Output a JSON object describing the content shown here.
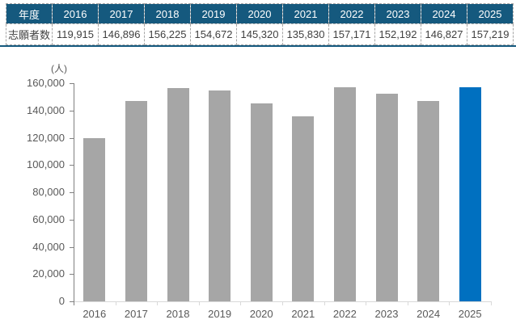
{
  "table": {
    "header_label": "年度",
    "row_label": "志願者数",
    "years": [
      "2016",
      "2017",
      "2018",
      "2019",
      "2020",
      "2021",
      "2022",
      "2023",
      "2024",
      "2025"
    ],
    "values": [
      "119,915",
      "146,896",
      "156,225",
      "154,672",
      "145,320",
      "135,830",
      "157,171",
      "152,192",
      "146,827",
      "157,219"
    ]
  },
  "chart_data": {
    "type": "bar",
    "title": "",
    "xlabel": "",
    "ylabel": "(人)",
    "categories": [
      "2016",
      "2017",
      "2018",
      "2019",
      "2020",
      "2021",
      "2022",
      "2023",
      "2024",
      "2025"
    ],
    "values": [
      119915,
      146896,
      156225,
      154672,
      145320,
      135830,
      157171,
      152192,
      146827,
      157219
    ],
    "ylim": [
      0,
      160000
    ],
    "ytick_interval": 20000,
    "ytick_labels": [
      "0",
      "20,000",
      "40,000",
      "60,000",
      "80,000",
      "100,000",
      "120,000",
      "140,000",
      "160,000"
    ],
    "grid": false,
    "legend": "none",
    "bar_color": "#A6A6A6",
    "highlight_index": 9,
    "highlight_color": "#0070C0"
  },
  "colors": {
    "table_header_bg": "#15597E",
    "table_header_text": "#FFFFFF",
    "table_text": "#404040",
    "table_border": "#A6A6A6",
    "table_bottom_rule": "#15597E",
    "axis_dark": "#808080",
    "axis_light": "#D9D9D9",
    "tick_label": "#595959"
  }
}
